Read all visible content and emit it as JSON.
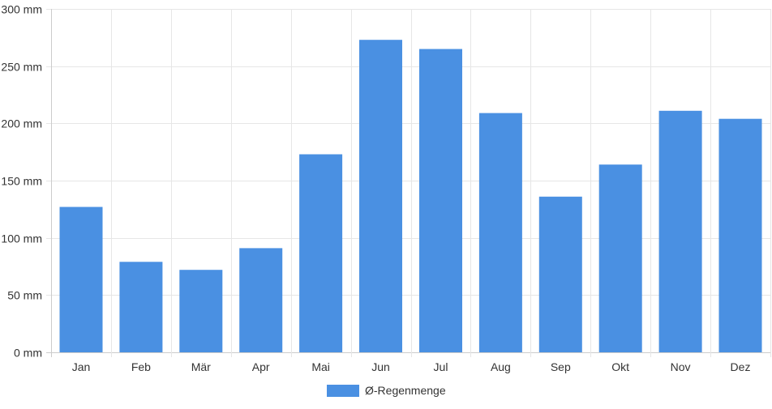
{
  "chart_data": {
    "type": "bar",
    "categories": [
      "Jan",
      "Feb",
      "Mär",
      "Apr",
      "Mai",
      "Jun",
      "Jul",
      "Aug",
      "Sep",
      "Okt",
      "Nov",
      "Dez"
    ],
    "series": [
      {
        "name": "Ø-Regenmenge",
        "values": [
          127,
          79,
          72,
          91,
          173,
          273,
          265,
          209,
          136,
          164,
          211,
          204
        ],
        "color": "#4a90e2"
      }
    ],
    "y_ticks": [
      "0 mm",
      "50 mm",
      "100 mm",
      "150 mm",
      "200 mm",
      "250 mm",
      "300 mm"
    ],
    "unit": "mm",
    "ylim": [
      0,
      300
    ],
    "y_tick_step": 50,
    "grid": true,
    "legend_position": "bottom-center",
    "grid_color": "#e6e6e6",
    "axis_color": "#cccccc"
  }
}
